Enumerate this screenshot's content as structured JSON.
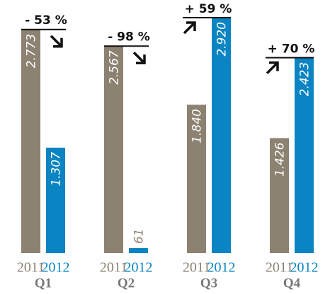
{
  "chart_data": {
    "type": "bar",
    "categories": [
      "Q1",
      "Q2",
      "Q3",
      "Q4"
    ],
    "series": [
      {
        "name": "2011",
        "color": "#8c8271",
        "values": [
          2773,
          2567,
          1840,
          1426
        ],
        "value_labels": [
          "2.773",
          "2.567",
          "1.840",
          "1.426"
        ]
      },
      {
        "name": "2012",
        "color": "#0a84c2",
        "values": [
          1307,
          61,
          2920,
          2423
        ],
        "value_labels": [
          "1.307",
          "61",
          "2.920",
          "2.423"
        ]
      }
    ],
    "annotations": [
      "- 53 %",
      "- 98 %",
      "+ 59 %",
      "+ 70 %"
    ]
  }
}
